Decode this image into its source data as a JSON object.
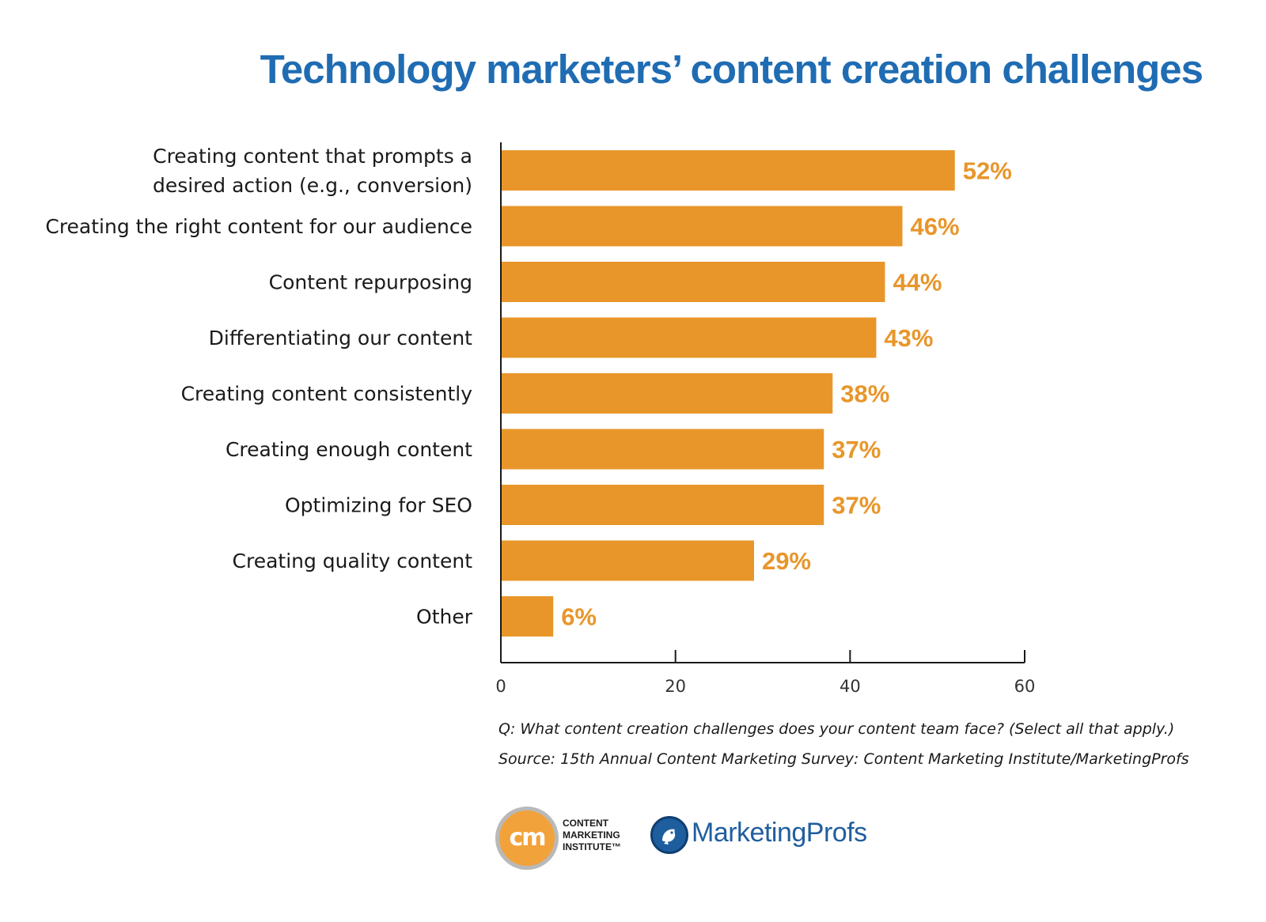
{
  "chart_data": {
    "type": "bar",
    "orientation": "horizontal",
    "title": "Technology marketers’ content creation challenges",
    "categories": [
      [
        "Creating content that prompts a",
        "desired action (e.g., conversion)"
      ],
      [
        "Creating the right content for our audience"
      ],
      [
        "Content repurposing"
      ],
      [
        "Differentiating our content"
      ],
      [
        "Creating content consistently"
      ],
      [
        "Creating enough content"
      ],
      [
        "Optimizing for SEO"
      ],
      [
        "Creating quality content"
      ],
      [
        "Other"
      ]
    ],
    "values": [
      52,
      46,
      44,
      43,
      38,
      37,
      37,
      29,
      6
    ],
    "value_labels": [
      "52%",
      "46%",
      "44%",
      "43%",
      "38%",
      "37%",
      "37%",
      "29%",
      "6%"
    ],
    "xlim": [
      0,
      60
    ],
    "xticks": [
      0,
      20,
      40,
      60
    ],
    "xtick_labels": [
      "0",
      "20",
      "40",
      "60"
    ],
    "grid": false,
    "bar_color": "#e8962a",
    "value_label_color": "#e8962a"
  },
  "notes": {
    "question": "Q: What content creation challenges does your content team face? (Select all that apply.)",
    "source": "Source: 15th Annual Content Marketing Survey: Content Marketing Institute/MarketingProfs"
  },
  "logos": {
    "cmi_mark": "cm",
    "cmi_lines": [
      "CONTENT",
      "MARKETING",
      "INSTITUTE™"
    ],
    "mp_name": "MarketingProfs",
    "mp_icon": "bird-logo-icon"
  },
  "colors": {
    "title": "#1f6cb3",
    "bars": "#e8962a"
  }
}
